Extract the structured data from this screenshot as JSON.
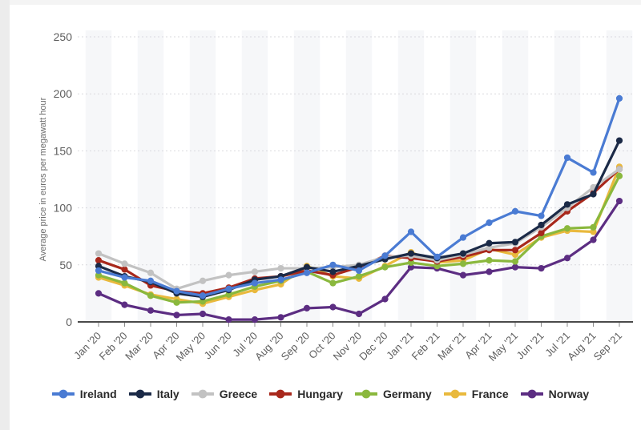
{
  "chart_data": {
    "type": "line",
    "title": "",
    "xlabel": "",
    "ylabel": "Average price in euros per megawatt hour",
    "ylim": [
      0,
      250
    ],
    "y_ticks": [
      0,
      50,
      100,
      150,
      200,
      250
    ],
    "grid": "horizontal dotted light gray, solid baseline at 0, faint alternating vertical bands",
    "legend_position": "bottom center",
    "axis_text_color": "#5f5f5f",
    "categories": [
      "Jan '20",
      "Feb '20",
      "Mar '20",
      "Apr '20",
      "May '20",
      "Jun '20",
      "Jul '20",
      "Aug '20",
      "Sep '20",
      "Oct '20",
      "Nov '20",
      "Dec '20",
      "Jan '21",
      "Feb '21",
      "Mar '21",
      "Apr '21",
      "May '21",
      "Jun '21",
      "Jul '21",
      "Aug '21",
      "Sep '21"
    ],
    "series": [
      {
        "name": "Ireland",
        "color": "#4a7bd3",
        "values": [
          45,
          39,
          36,
          27,
          23,
          29,
          34,
          37,
          43,
          50,
          45,
          58,
          79,
          57,
          74,
          87,
          97,
          93,
          144,
          131,
          196
        ]
      },
      {
        "name": "Italy",
        "color": "#1b2a47",
        "values": [
          49,
          40,
          35,
          25,
          22,
          28,
          37,
          40,
          48,
          44,
          49,
          55,
          60,
          56,
          60,
          69,
          70,
          85,
          103,
          112,
          159
        ]
      },
      {
        "name": "Greece",
        "color": "#c2c2c2",
        "values": [
          60,
          51,
          43,
          29,
          36,
          41,
          44,
          47,
          47,
          48,
          50,
          57,
          58,
          54,
          59,
          65,
          69,
          83,
          100,
          118,
          134
        ]
      },
      {
        "name": "Hungary",
        "color": "#a8281c",
        "values": [
          54,
          46,
          32,
          27,
          25,
          30,
          38,
          40,
          45,
          41,
          48,
          58,
          56,
          53,
          57,
          63,
          63,
          78,
          97,
          113,
          134
        ]
      },
      {
        "name": "Germany",
        "color": "#8ab83d",
        "values": [
          41,
          34,
          23,
          17,
          18,
          24,
          31,
          36,
          44,
          34,
          40,
          48,
          52,
          49,
          51,
          54,
          53,
          75,
          82,
          83,
          128
        ]
      },
      {
        "name": "France",
        "color": "#e9b93d",
        "values": [
          39,
          32,
          24,
          20,
          16,
          22,
          28,
          33,
          49,
          40,
          38,
          49,
          61,
          52,
          54,
          64,
          59,
          74,
          80,
          79,
          136
        ]
      },
      {
        "name": "Norway",
        "color": "#5c2d82",
        "values": [
          25,
          15,
          10,
          6,
          7,
          2,
          2,
          4,
          12,
          13,
          7,
          20,
          48,
          47,
          41,
          44,
          48,
          47,
          56,
          72,
          106
        ]
      }
    ]
  }
}
